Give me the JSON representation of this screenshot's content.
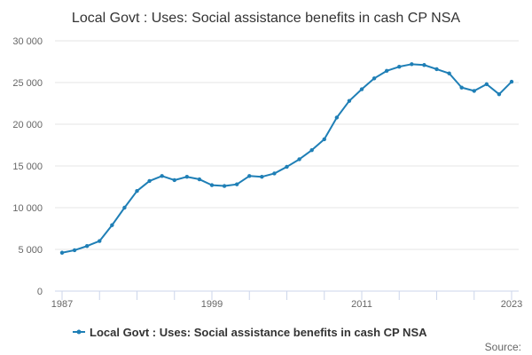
{
  "chart_data": {
    "type": "line",
    "title": "Local Govt : Uses: Social assistance benefits in cash CP NSA",
    "xlabel": "",
    "ylabel": "",
    "x": [
      1987,
      1988,
      1989,
      1990,
      1991,
      1992,
      1993,
      1994,
      1995,
      1996,
      1997,
      1998,
      1999,
      2000,
      2001,
      2002,
      2003,
      2004,
      2005,
      2006,
      2007,
      2008,
      2009,
      2010,
      2011,
      2012,
      2013,
      2014,
      2015,
      2016,
      2017,
      2018,
      2019,
      2020,
      2021,
      2022,
      2023
    ],
    "series": [
      {
        "name": "Local Govt : Uses: Social assistance benefits in cash CP NSA",
        "color": "#1f7fb6",
        "values": [
          4600,
          4900,
          5400,
          6000,
          7900,
          10000,
          12000,
          13200,
          13800,
          13300,
          13700,
          13400,
          12700,
          12600,
          12800,
          13800,
          13700,
          14100,
          14900,
          15800,
          16900,
          18200,
          20800,
          22800,
          24200,
          25500,
          26400,
          26900,
          27200,
          27100,
          26600,
          26100,
          24400,
          24000,
          24800,
          23600,
          25100
        ]
      }
    ],
    "xticks": [
      "1987",
      "1999",
      "2011",
      "2023"
    ],
    "yticks": [
      "0",
      "5 000",
      "10 000",
      "15 000",
      "20 000",
      "25 000",
      "30 000"
    ],
    "ylim": [
      0,
      30000
    ],
    "grid": true,
    "legend_position": "bottom"
  },
  "footer": {
    "source_label": "Source:"
  }
}
